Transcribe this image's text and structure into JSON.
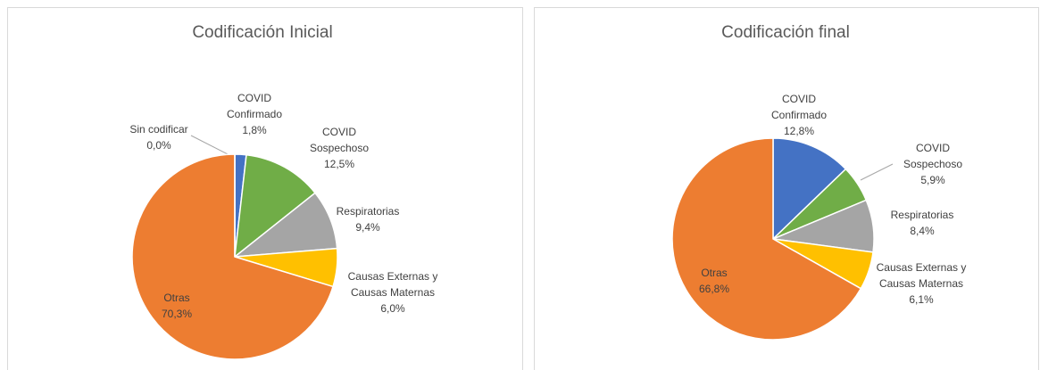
{
  "chart_data": [
    {
      "type": "pie",
      "title": "Codificación Inicial",
      "categories": [
        "COVID Confirmado",
        "COVID Sospechoso",
        "Respiratorias",
        "Causas Externas y Causas Maternas",
        "Otras",
        "Sin codificar"
      ],
      "values": [
        1.8,
        12.5,
        9.4,
        6.0,
        70.3,
        0.0
      ],
      "value_labels": [
        "1,8%",
        "12,5%",
        "9,4%",
        "6,0%",
        "70,3%",
        "0,0%"
      ],
      "colors": [
        "#4472c4",
        "#70ad47",
        "#a5a5a5",
        "#ffc000",
        "#ed7d31",
        "#5b9bd5"
      ]
    },
    {
      "type": "pie",
      "title": "Codificación final",
      "categories": [
        "COVID Confirmado",
        "COVID Sospechoso",
        "Respiratorias",
        "Causas Externas y Causas Maternas",
        "Otras"
      ],
      "values": [
        12.8,
        5.9,
        8.4,
        6.1,
        66.8
      ],
      "value_labels": [
        "12,8%",
        "5,9%",
        "8,4%",
        "6,1%",
        "66,8%"
      ],
      "colors": [
        "#4472c4",
        "#70ad47",
        "#a5a5a5",
        "#ffc000",
        "#ed7d31"
      ]
    }
  ]
}
